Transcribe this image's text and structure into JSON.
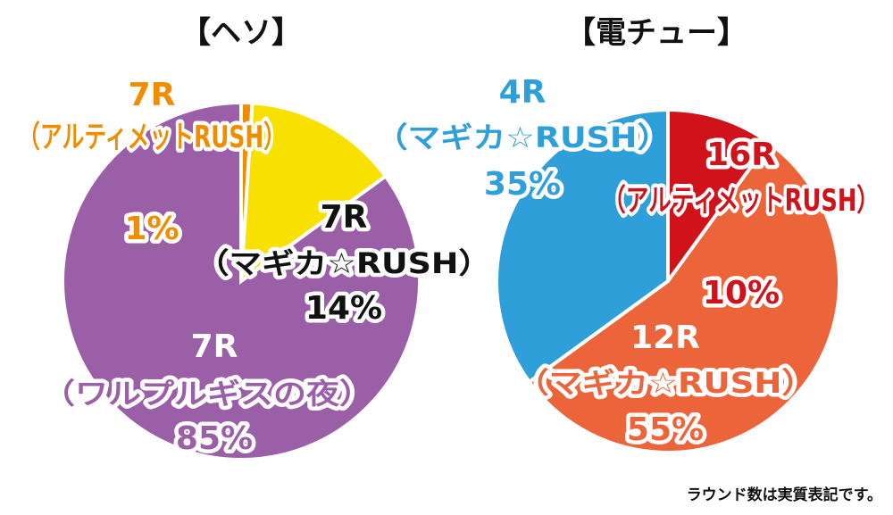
{
  "note": "ラウンド数は実質表記です。",
  "chart_data": [
    {
      "type": "pie",
      "title": "【ヘソ】",
      "slices": [
        {
          "round": "7R",
          "mode": "（アルティメットRUSH）",
          "value": 1,
          "pct_label": "1%",
          "color": "#f08c00"
        },
        {
          "round": "7R",
          "mode": "（マギカ☆RUSH）",
          "value": 14,
          "pct_label": "14%",
          "color": "#f8e000"
        },
        {
          "round": "7R",
          "mode": "（ワルプルギスの夜）",
          "value": 85,
          "pct_label": "85%",
          "color": "#9a5fa6"
        }
      ]
    },
    {
      "type": "pie",
      "title": "【電チュー】",
      "slices": [
        {
          "round": "16R",
          "mode": "（アルティメットRUSH）",
          "value": 10,
          "pct_label": "10%",
          "color": "#d0121b"
        },
        {
          "round": "12R",
          "mode": "（マギカ☆RUSH）",
          "value": 55,
          "pct_label": "55%",
          "color": "#ec6439"
        },
        {
          "round": "4R",
          "mode": "（マギカ☆RUSH）",
          "value": 35,
          "pct_label": "35%",
          "color": "#2e9fd9"
        }
      ]
    }
  ]
}
